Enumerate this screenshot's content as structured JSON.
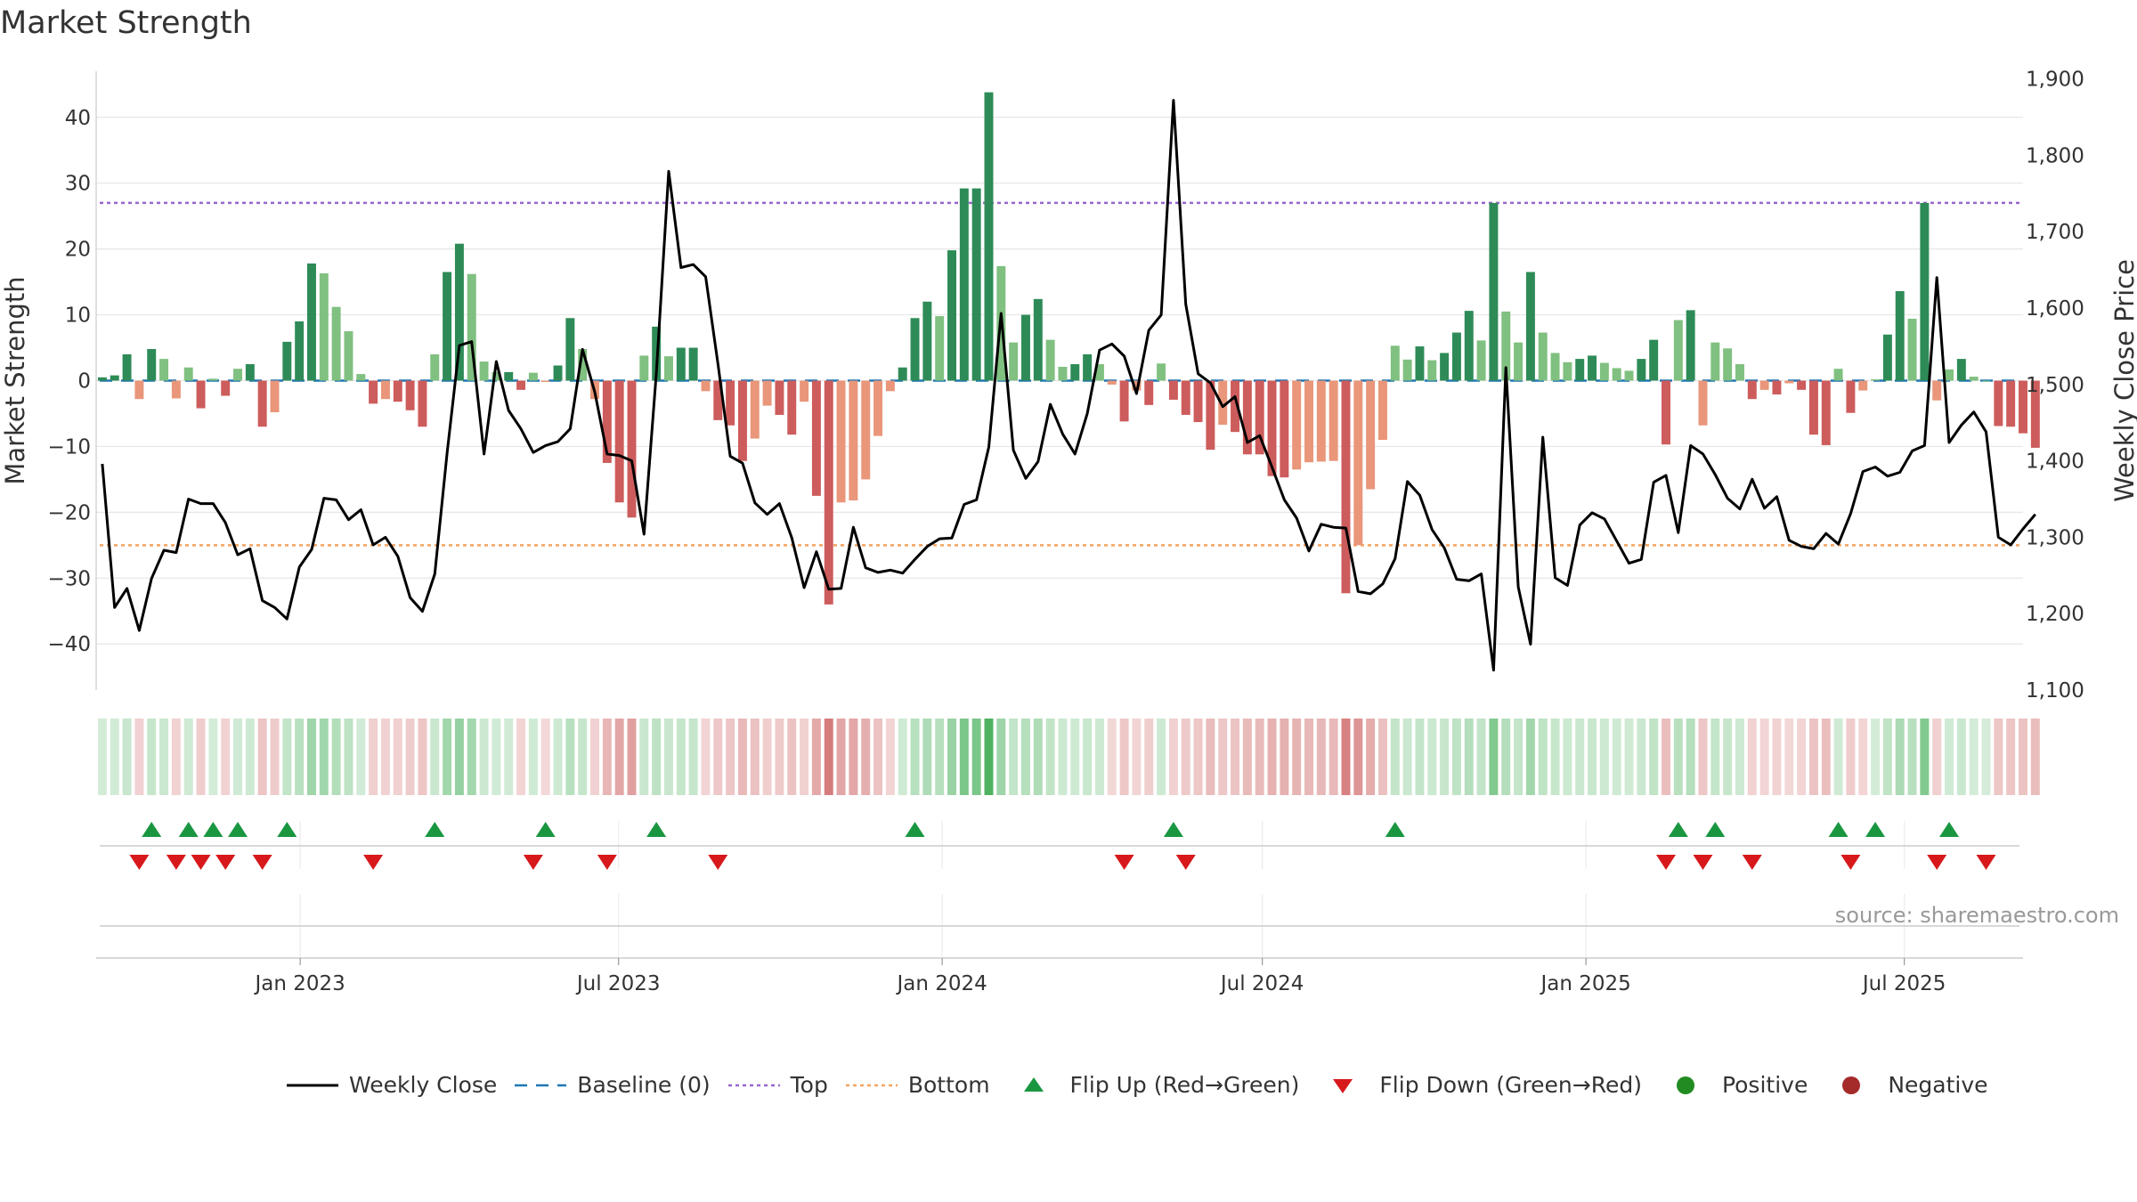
{
  "title": "Market Strength",
  "source": "source: sharemaestro.com",
  "colors": {
    "pos_strong": "#2e8b57",
    "pos_light": "#80c080",
    "neg_strong": "#cd5c5c",
    "neg_light": "#e9967a",
    "top_line": "#9966cc",
    "bottom_line": "#f4a460",
    "baseline": "#1f77b4",
    "close_line": "#000000",
    "flip_up": "#1a9641",
    "flip_down": "#d7191c",
    "positive_dot": "#228b22",
    "negative_dot": "#a52a2a",
    "grid": "#e6e6e6"
  },
  "legend": {
    "close": "Weekly Close",
    "baseline": "Baseline (0)",
    "top": "Top",
    "bottom": "Bottom",
    "flip_up": "Flip Up (Red→Green)",
    "flip_down": "Flip Down (Green→Red)",
    "positive": "Positive",
    "negative": "Negative"
  },
  "chart_data": {
    "type": "bar",
    "title": "Market Strength",
    "ylabel_left": "Market Strength",
    "ylabel_right": "Weekly Close Price",
    "ylim_left": [
      -47,
      47
    ],
    "ylim_right": [
      1100,
      1910
    ],
    "yticks_left": [
      40,
      30,
      20,
      10,
      0,
      -10,
      -20,
      -30,
      -40
    ],
    "yticks_right": [
      1900,
      1800,
      1700,
      1600,
      1500,
      1400,
      1300,
      1200,
      1100
    ],
    "ytick_labels_left": [
      "40",
      "30",
      "20",
      "10",
      "0",
      "−10",
      "−20",
      "−30",
      "−40"
    ],
    "ytick_labels_right": [
      "1,900",
      "1,800",
      "1,700",
      "1,600",
      "1,500",
      "1,400",
      "1,300",
      "1,200",
      "1,100"
    ],
    "top_level": 27,
    "bottom_level": -25,
    "baseline": 0,
    "x_start": "2022-09-07",
    "x_end": "2025-09-12",
    "x_tick_dates": [
      "2023-01-01",
      "2023-07-01",
      "2024-01-01",
      "2024-07-01",
      "2025-01-01",
      "2025-07-01"
    ],
    "x_tick_labels": [
      "Jan 2023",
      "Jul 2023",
      "Jan 2024",
      "Jul 2024",
      "Jan 2025",
      "Jul 2025"
    ],
    "strength": [
      0.5,
      0.8,
      4,
      -2.8,
      4.8,
      3.3,
      -2.7,
      2,
      -4.2,
      0.3,
      -2.3,
      1.8,
      2.5,
      -7,
      -4.8,
      5.9,
      9,
      17.8,
      16.3,
      11.2,
      7.5,
      1,
      -3.5,
      -2.8,
      -3.2,
      -4.5,
      -7,
      4,
      16.5,
      20.8,
      16.2,
      2.9,
      1.3,
      1.3,
      -1.4,
      1.2,
      -0.2,
      2.3,
      9.5,
      4.8,
      -2.8,
      -12.5,
      -18.5,
      -20.8,
      3.8,
      8.2,
      3.7,
      5,
      5,
      -1.6,
      -6,
      -6.8,
      -12.2,
      -8.8,
      -3.8,
      -5.2,
      -8.2,
      -3.2,
      -17.5,
      -34,
      -18.5,
      -18.2,
      -15,
      -8.4,
      -1.6,
      2,
      9.5,
      12,
      9.8,
      19.8,
      29.2,
      29.2,
      43.8,
      17.4,
      5.8,
      10,
      12.4,
      6.2,
      2.1,
      2.5,
      4,
      2.5,
      -0.6,
      -6.2,
      -1.5,
      -3.7,
      2.6,
      -2.9,
      -5.2,
      -6.3,
      -10.5,
      -6.7,
      -7.8,
      -11.2,
      -11.2,
      -14.5,
      -14.7,
      -13.5,
      -12.4,
      -12.3,
      -12.2,
      -32.3,
      -25,
      -16.5,
      -9,
      5.3,
      3.2,
      5.2,
      3.1,
      4.2,
      7.3,
      10.6,
      6.1,
      27,
      10.5,
      5.8,
      16.5,
      7.3,
      4.2,
      2.8,
      3.3,
      3.8,
      2.7,
      1.9,
      1.5,
      3.3,
      6.2,
      -9.7,
      9.2,
      10.7,
      -6.8,
      5.8,
      4.9,
      2.5,
      -2.8,
      -1.4,
      -2.1,
      -0.4,
      -1.4,
      -8.2,
      -9.8,
      1.8,
      -4.9,
      -1.5,
      0.2,
      7,
      13.6,
      9.4,
      27,
      -3,
      1.7,
      3.3,
      0.6,
      0,
      -6.9,
      -7,
      -8,
      -10.2
    ],
    "close": [
      1396,
      1208,
      1233,
      1178,
      1246,
      1283,
      1280,
      1350,
      1344,
      1344,
      1319,
      1277,
      1285,
      1217,
      1208,
      1193,
      1261,
      1284,
      1351,
      1349,
      1323,
      1336,
      1290,
      1300,
      1275,
      1221,
      1203,
      1252,
      1410,
      1551,
      1556,
      1409,
      1530,
      1466,
      1442,
      1411,
      1420,
      1425,
      1442,
      1546,
      1490,
      1409,
      1407,
      1400,
      1304,
      1516,
      1779,
      1653,
      1657,
      1641,
      1527,
      1406,
      1397,
      1345,
      1330,
      1344,
      1299,
      1234,
      1281,
      1232,
      1233,
      1313,
      1260,
      1254,
      1257,
      1253,
      1271,
      1288,
      1298,
      1299,
      1343,
      1349,
      1418,
      1593,
      1414,
      1377,
      1399,
      1474,
      1435,
      1409,
      1462,
      1545,
      1553,
      1537,
      1488,
      1571,
      1591,
      1872,
      1605,
      1514,
      1502,
      1471,
      1484,
      1424,
      1433,
      1392,
      1349,
      1325,
      1282,
      1317,
      1313,
      1312,
      1229,
      1226,
      1239,
      1272,
      1373,
      1355,
      1310,
      1286,
      1245,
      1243,
      1252,
      1126,
      1522,
      1235,
      1160,
      1431,
      1247,
      1237,
      1316,
      1332,
      1324,
      1295,
      1266,
      1271,
      1372,
      1381,
      1306,
      1420,
      1409,
      1382,
      1351,
      1337,
      1376,
      1338,
      1353,
      1296,
      1288,
      1285,
      1305,
      1291,
      1331,
      1386,
      1392,
      1380,
      1385,
      1413,
      1420,
      1640,
      1424,
      1447,
      1464,
      1438,
      1300,
      1290,
      1311,
      1330
    ],
    "flip_up_weeks": [
      4,
      7,
      9,
      11,
      15,
      27,
      36,
      45,
      66,
      87,
      105,
      128,
      131,
      141,
      144,
      150
    ],
    "flip_down_weeks": [
      3,
      6,
      8,
      10,
      13,
      22,
      35,
      41,
      50,
      83,
      88,
      127,
      130,
      134,
      142,
      149,
      153
    ],
    "x_range_weeks": [
      0,
      156.5
    ]
  }
}
